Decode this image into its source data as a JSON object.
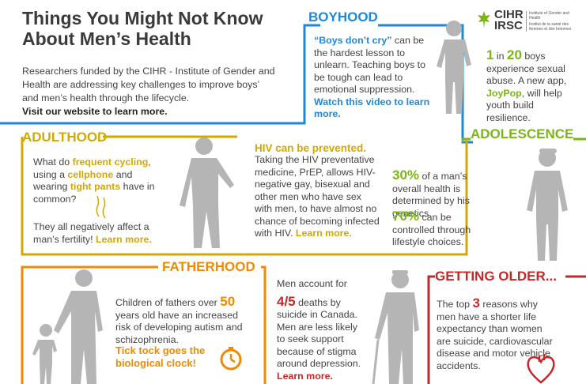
{
  "title": {
    "line1": "Things You Might Not Know",
    "line2": "About Men’s Health"
  },
  "intro": {
    "text": "Researchers funded by the CIHR - Institute of Gender and Health are addressing key challenges to improve boys’ and men’s health through the lifecycle.",
    "link": "Visit our website to learn more."
  },
  "logo": {
    "cihr": "CIHR",
    "irsc": "IRSC",
    "en": "Institute of Gender and Health",
    "fr": "Institut de la santé des femmes et des hommes"
  },
  "boyhood": {
    "heading": "BOYHOOD",
    "quote": "“Boys don’t cry”",
    "text": " can be the hardest lesson to unlearn. Teaching boys to be tough can lead to emotional suppression.",
    "link": "Watch this video to learn more.",
    "stat_num1": "1",
    "stat_in": " in ",
    "stat_num2": "20",
    "stat_text1": " boys experience sexual abuse. A new app, ",
    "app": "JoyPop",
    "stat_text2": ", will help youth build resilience."
  },
  "adulthood": {
    "heading": "ADULTHOOD",
    "t1": "What do ",
    "k1": "frequent cycling",
    "t2": ", using a ",
    "k2": "cellphone",
    "t3": " and wearing ",
    "k3": "tight pants",
    "t4": " have in common?",
    "answer": "They all negatively affect a man’s fertility! ",
    "link": "Learn more."
  },
  "hiv": {
    "heading": "HIV can be prevented.",
    "text": "Taking the HIV preventative medicine, PrEP, allows HIV-negative gay, bisexual and other men who have sex with men, to have almost no chance of becoming infected with HIV. ",
    "link": "Learn more."
  },
  "adolescence": {
    "heading": "ADOLESCENCE",
    "pct1": "30%",
    "text1": " of a man’s overall health is determined by his genetics.",
    "pct2": "70%",
    "text2": " can be controlled through lifestyle choices."
  },
  "fatherhood": {
    "heading": "FATHERHOOD",
    "text1": "Children of fathers over ",
    "num": "50",
    "text2": " years old have an increased risk of developing autism and schizophrenia.",
    "highlight": "Tick tock goes the biological clock!"
  },
  "suicide": {
    "text1": "Men account for",
    "frac": "4/5",
    "text2": " deaths by suicide in Canada. Men are less likely to seek support because of stigma around depression. ",
    "link": "Learn more."
  },
  "older": {
    "heading": "GETTING OLDER...",
    "text1": "The top ",
    "num": "3",
    "text2": " reasons why men have a shorter life expectancy than women are suicide, cardiovascular disease and motor vehicle accidents."
  },
  "colors": {
    "blue": "#1e88d6",
    "green": "#7cb518",
    "yellow": "#d4a800",
    "orange": "#f08a00",
    "red": "#c62828",
    "silhouette": "#b5b5b5"
  },
  "icons": [
    "boy-silhouette",
    "teen-silhouette",
    "man-silhouette",
    "father-child-silhouette",
    "elderly-man-silhouette",
    "clock-icon",
    "heart-icon",
    "sperm-icon",
    "maple-leaf-logo"
  ]
}
